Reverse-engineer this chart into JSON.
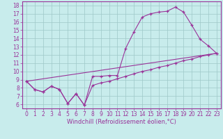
{
  "xlabel": "Windchill (Refroidissement éolien,°C)",
  "bg_color": "#c8ecec",
  "line_color": "#993399",
  "grid_color": "#9ec8c8",
  "xlim": [
    -0.5,
    23.5
  ],
  "ylim": [
    5.5,
    18.5
  ],
  "yticks": [
    6,
    7,
    8,
    9,
    10,
    11,
    12,
    13,
    14,
    15,
    16,
    17,
    18
  ],
  "xticks": [
    0,
    1,
    2,
    3,
    4,
    5,
    6,
    7,
    8,
    9,
    10,
    11,
    12,
    13,
    14,
    15,
    16,
    17,
    18,
    19,
    20,
    21,
    22,
    23
  ],
  "line1_x": [
    0,
    1,
    2,
    3,
    4,
    5,
    6,
    7,
    8,
    9,
    10,
    11,
    12,
    13,
    14,
    15,
    16,
    17,
    18,
    19,
    20,
    21,
    22,
    23
  ],
  "line1_y": [
    8.8,
    7.8,
    7.5,
    8.2,
    7.8,
    6.1,
    7.3,
    5.9,
    9.4,
    9.4,
    9.5,
    9.5,
    12.8,
    14.8,
    16.6,
    17.0,
    17.2,
    17.3,
    17.8,
    17.2,
    15.6,
    13.9,
    13.1,
    12.2
  ],
  "line2_x": [
    0,
    1,
    2,
    3,
    4,
    5,
    6,
    7,
    8,
    9,
    10,
    11,
    12,
    13,
    14,
    15,
    16,
    17,
    18,
    19,
    20,
    21,
    22,
    23
  ],
  "line2_y": [
    8.8,
    7.8,
    7.5,
    8.2,
    7.8,
    6.1,
    7.3,
    5.9,
    8.3,
    8.6,
    8.8,
    9.1,
    9.4,
    9.7,
    10.0,
    10.2,
    10.5,
    10.7,
    11.0,
    11.3,
    11.5,
    11.8,
    12.0,
    12.2
  ],
  "line3_x": [
    0,
    23
  ],
  "line3_y": [
    8.8,
    12.2
  ],
  "tick_fontsize": 5.5,
  "xlabel_fontsize": 6.0
}
